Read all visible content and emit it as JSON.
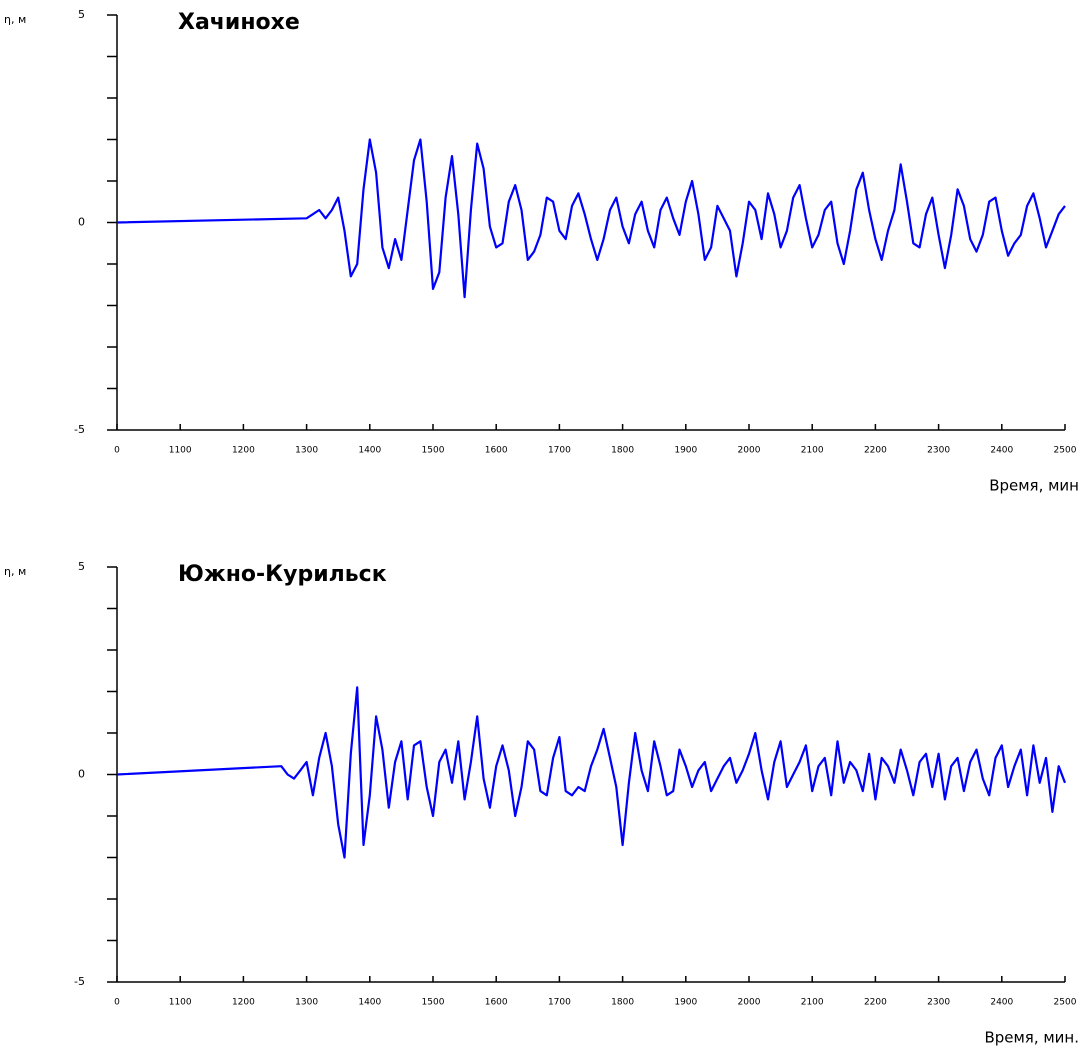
{
  "chart_data": [
    {
      "type": "line",
      "title": "Хачинохе",
      "ylabel": "η, м",
      "xlabel": "Время, мин",
      "color": "#0000ff",
      "xlim": [
        1000,
        2500
      ],
      "ylim": [
        -5,
        5
      ],
      "xticks": [
        {
          "value": 1000,
          "label": "0"
        },
        1100,
        1200,
        1300,
        1400,
        1500,
        1600,
        1700,
        1800,
        1900,
        2000,
        2100,
        2200,
        2300,
        2400,
        2500
      ],
      "yticks": [
        -5,
        0,
        5
      ],
      "yminor_ticks": [
        -4,
        -3,
        -2,
        -1,
        1,
        2,
        3,
        4
      ],
      "x": [
        1000,
        1300,
        1310,
        1320,
        1330,
        1340,
        1350,
        1360,
        1370,
        1380,
        1390,
        1400,
        1410,
        1420,
        1430,
        1440,
        1450,
        1460,
        1470,
        1480,
        1490,
        1500,
        1510,
        1520,
        1530,
        1540,
        1550,
        1560,
        1570,
        1580,
        1590,
        1600,
        1610,
        1620,
        1630,
        1640,
        1650,
        1660,
        1670,
        1680,
        1690,
        1700,
        1710,
        1720,
        1730,
        1740,
        1750,
        1760,
        1770,
        1780,
        1790,
        1800,
        1810,
        1820,
        1830,
        1840,
        1850,
        1860,
        1870,
        1880,
        1890,
        1900,
        1910,
        1920,
        1930,
        1940,
        1950,
        1960,
        1970,
        1980,
        1990,
        2000,
        2010,
        2020,
        2030,
        2040,
        2050,
        2060,
        2070,
        2080,
        2090,
        2100,
        2110,
        2120,
        2130,
        2140,
        2150,
        2160,
        2170,
        2180,
        2190,
        2200,
        2210,
        2220,
        2230,
        2240,
        2250,
        2260,
        2270,
        2280,
        2290,
        2300,
        2310,
        2320,
        2330,
        2340,
        2350,
        2360,
        2370,
        2380,
        2390,
        2400,
        2410,
        2420,
        2430,
        2440,
        2450,
        2460,
        2470,
        2480,
        2490,
        2500
      ],
      "values": [
        0,
        0.1,
        0.2,
        0.3,
        0.1,
        0.3,
        0.6,
        -0.2,
        -1.3,
        -1.0,
        0.8,
        2.0,
        1.2,
        -0.6,
        -1.1,
        -0.4,
        -0.9,
        0.3,
        1.5,
        2.0,
        0.5,
        -1.6,
        -1.2,
        0.6,
        1.6,
        0.2,
        -1.8,
        0.3,
        1.9,
        1.3,
        -0.1,
        -0.6,
        -0.5,
        0.5,
        0.9,
        0.3,
        -0.9,
        -0.7,
        -0.3,
        0.6,
        0.5,
        -0.2,
        -0.4,
        0.4,
        0.7,
        0.2,
        -0.4,
        -0.9,
        -0.4,
        0.3,
        0.6,
        -0.1,
        -0.5,
        0.2,
        0.5,
        -0.2,
        -0.6,
        0.3,
        0.6,
        0.1,
        -0.3,
        0.5,
        1.0,
        0.2,
        -0.9,
        -0.6,
        0.4,
        0.1,
        -0.2,
        -1.3,
        -0.5,
        0.5,
        0.3,
        -0.4,
        0.7,
        0.2,
        -0.6,
        -0.2,
        0.6,
        0.9,
        0.1,
        -0.6,
        -0.3,
        0.3,
        0.5,
        -0.5,
        -1.0,
        -0.2,
        0.8,
        1.2,
        0.3,
        -0.4,
        -0.9,
        -0.2,
        0.3,
        1.4,
        0.5,
        -0.5,
        -0.6,
        0.2,
        0.6,
        -0.3,
        -1.1,
        -0.3,
        0.8,
        0.4,
        -0.4,
        -0.7,
        -0.3,
        0.5,
        0.6,
        -0.2,
        -0.8,
        -0.5,
        -0.3,
        0.4,
        0.7,
        0.1,
        -0.6,
        -0.2,
        0.2,
        0.4
      ]
    },
    {
      "type": "line",
      "title": "Южно-Курильск",
      "ylabel": "η, м",
      "xlabel": "Время, мин.",
      "color": "#0000ff",
      "xlim": [
        1000,
        2500
      ],
      "ylim": [
        -5,
        5
      ],
      "xticks": [
        {
          "value": 1000,
          "label": "0"
        },
        1100,
        1200,
        1300,
        1400,
        1500,
        1600,
        1700,
        1800,
        1900,
        2000,
        2100,
        2200,
        2300,
        2400,
        2500
      ],
      "yticks": [
        -5,
        0,
        5
      ],
      "yminor_ticks": [
        -4,
        -3,
        -2,
        -1,
        1,
        2,
        3,
        4
      ],
      "x": [
        1000,
        1260,
        1270,
        1280,
        1290,
        1300,
        1310,
        1320,
        1330,
        1340,
        1350,
        1360,
        1370,
        1380,
        1390,
        1400,
        1410,
        1420,
        1430,
        1440,
        1450,
        1460,
        1470,
        1480,
        1490,
        1500,
        1510,
        1520,
        1530,
        1540,
        1550,
        1560,
        1570,
        1580,
        1590,
        1600,
        1610,
        1620,
        1630,
        1640,
        1650,
        1660,
        1670,
        1680,
        1690,
        1700,
        1710,
        1720,
        1730,
        1740,
        1750,
        1760,
        1770,
        1780,
        1790,
        1800,
        1810,
        1820,
        1830,
        1840,
        1850,
        1860,
        1870,
        1880,
        1890,
        1900,
        1910,
        1920,
        1930,
        1940,
        1950,
        1960,
        1970,
        1980,
        1990,
        2000,
        2010,
        2020,
        2030,
        2040,
        2050,
        2060,
        2070,
        2080,
        2090,
        2100,
        2110,
        2120,
        2130,
        2140,
        2150,
        2160,
        2170,
        2180,
        2190,
        2200,
        2210,
        2220,
        2230,
        2240,
        2250,
        2260,
        2270,
        2280,
        2290,
        2300,
        2310,
        2320,
        2330,
        2340,
        2350,
        2360,
        2370,
        2380,
        2390,
        2400,
        2410,
        2420,
        2430,
        2440,
        2450,
        2460,
        2470,
        2480,
        2490,
        2500
      ],
      "values": [
        0,
        0.2,
        0.0,
        -0.1,
        0.1,
        0.3,
        -0.5,
        0.4,
        1.0,
        0.2,
        -1.2,
        -2.0,
        0.5,
        2.1,
        -1.7,
        -0.5,
        1.4,
        0.6,
        -0.8,
        0.3,
        0.8,
        -0.6,
        0.7,
        0.8,
        -0.3,
        -1.0,
        0.3,
        0.6,
        -0.2,
        0.8,
        -0.6,
        0.3,
        1.4,
        -0.1,
        -0.8,
        0.2,
        0.7,
        0.1,
        -1.0,
        -0.3,
        0.8,
        0.6,
        -0.4,
        -0.5,
        0.4,
        0.9,
        -0.4,
        -0.5,
        -0.3,
        -0.4,
        0.2,
        0.6,
        1.1,
        0.4,
        -0.3,
        -1.7,
        -0.2,
        1.0,
        0.1,
        -0.4,
        0.8,
        0.2,
        -0.5,
        -0.4,
        0.6,
        0.2,
        -0.3,
        0.1,
        0.3,
        -0.4,
        -0.1,
        0.2,
        0.4,
        -0.2,
        0.1,
        0.5,
        1.0,
        0.1,
        -0.6,
        0.3,
        0.8,
        -0.3,
        0.0,
        0.3,
        0.7,
        -0.4,
        0.2,
        0.4,
        -0.5,
        0.8,
        -0.2,
        0.3,
        0.1,
        -0.4,
        0.5,
        -0.6,
        0.4,
        0.2,
        -0.2,
        0.6,
        0.1,
        -0.5,
        0.3,
        0.5,
        -0.3,
        0.5,
        -0.6,
        0.2,
        0.4,
        -0.4,
        0.3,
        0.6,
        -0.1,
        -0.5,
        0.4,
        0.7,
        -0.3,
        0.2,
        0.6,
        -0.5,
        0.7,
        -0.2,
        0.4,
        -0.9,
        0.2,
        -0.2
      ]
    }
  ]
}
